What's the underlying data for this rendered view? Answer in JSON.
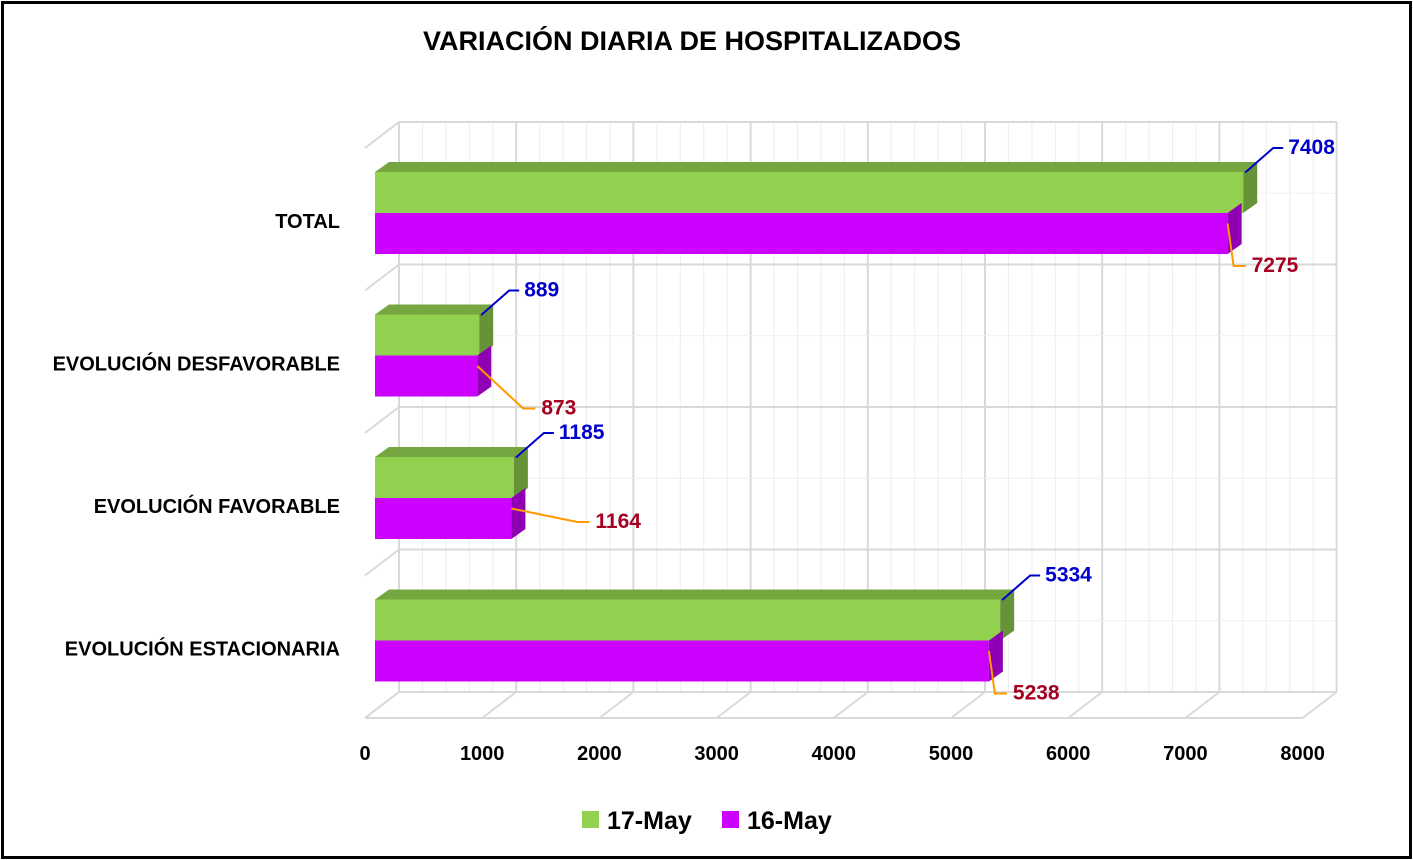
{
  "chart_data": {
    "type": "bar",
    "orientation": "horizontal",
    "three_d": true,
    "title": "VARIACIÓN DIARIA DE HOSPITALIZADOS",
    "categories": [
      "TOTAL",
      "EVOLUCIÓN DESFAVORABLE",
      "EVOLUCIÓN FAVORABLE",
      "EVOLUCIÓN ESTACIONARIA"
    ],
    "series": [
      {
        "name": "17-May",
        "values": [
          7408,
          889,
          1185,
          5334
        ],
        "color": "#92d050",
        "label_color": "#0000cc",
        "leader_color": "#0000cc"
      },
      {
        "name": "16-May",
        "values": [
          7275,
          873,
          1164,
          5238
        ],
        "color": "#cc00ff",
        "label_color": "#a50021",
        "leader_color": "#ff9900"
      }
    ],
    "x_ticks": [
      0,
      1000,
      2000,
      3000,
      4000,
      5000,
      6000,
      7000,
      8000
    ],
    "xlim": [
      0,
      8000
    ],
    "grid": true,
    "legend_position": "bottom",
    "xlabel": "",
    "ylabel": ""
  }
}
